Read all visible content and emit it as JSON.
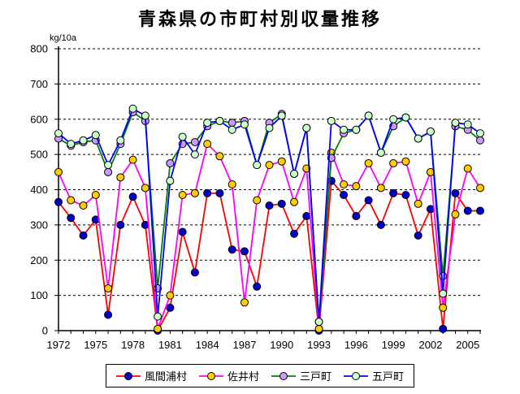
{
  "title": "青森県の市町村別収量推移",
  "y_axis_unit": "kg/10a",
  "chart_data": {
    "type": "line",
    "title": "青森県の市町村別収量推移",
    "ylabel": "kg/10a",
    "ylim": [
      0,
      800
    ],
    "y_tick_step": 100,
    "grid": "horizontal-dashed",
    "legend_position": "bottom",
    "x": [
      1972,
      1973,
      1974,
      1975,
      1976,
      1977,
      1978,
      1979,
      1980,
      1981,
      1982,
      1983,
      1984,
      1985,
      1986,
      1987,
      1988,
      1989,
      1990,
      1991,
      1992,
      1993,
      1994,
      1995,
      1996,
      1997,
      1998,
      1999,
      2000,
      2001,
      2002,
      2003,
      2004,
      2005,
      2006
    ],
    "x_tick_labels": [
      "1972",
      "1975",
      "1978",
      "1981",
      "1984",
      "1987",
      "1990",
      "1993",
      "1996",
      "1999",
      "2002",
      "2005"
    ],
    "series": [
      {
        "name": "風間浦村",
        "line_color": "#FF0000",
        "marker_color": "#0000CC",
        "values": [
          365,
          320,
          270,
          315,
          45,
          300,
          380,
          300,
          0,
          65,
          280,
          165,
          390,
          390,
          230,
          225,
          125,
          355,
          360,
          275,
          325,
          0,
          425,
          385,
          325,
          370,
          300,
          390,
          385,
          270,
          345,
          5,
          390,
          340,
          340
        ]
      },
      {
        "name": "佐井村",
        "line_color": "#FF00FF",
        "marker_color": "#FFCC00",
        "values": [
          450,
          370,
          355,
          385,
          120,
          435,
          485,
          405,
          5,
          100,
          385,
          390,
          530,
          495,
          415,
          80,
          370,
          470,
          480,
          365,
          460,
          5,
          505,
          415,
          410,
          475,
          405,
          475,
          480,
          360,
          450,
          65,
          330,
          460,
          405
        ]
      },
      {
        "name": "三戸町",
        "line_color": "#008000",
        "marker_color": "#CC99FF",
        "values": [
          545,
          525,
          535,
          540,
          450,
          530,
          620,
          595,
          120,
          475,
          530,
          535,
          580,
          595,
          590,
          595,
          470,
          590,
          615,
          445,
          575,
          25,
          490,
          560,
          570,
          610,
          505,
          580,
          605,
          545,
          565,
          155,
          580,
          570,
          540
        ]
      },
      {
        "name": "五戸町",
        "line_color": "#0000FF",
        "marker_color": "#CCFFCC",
        "values": [
          560,
          530,
          540,
          555,
          470,
          540,
          630,
          610,
          40,
          425,
          550,
          500,
          590,
          595,
          570,
          585,
          470,
          575,
          610,
          445,
          575,
          25,
          595,
          570,
          570,
          610,
          505,
          600,
          605,
          545,
          565,
          105,
          590,
          585,
          560
        ]
      }
    ]
  }
}
